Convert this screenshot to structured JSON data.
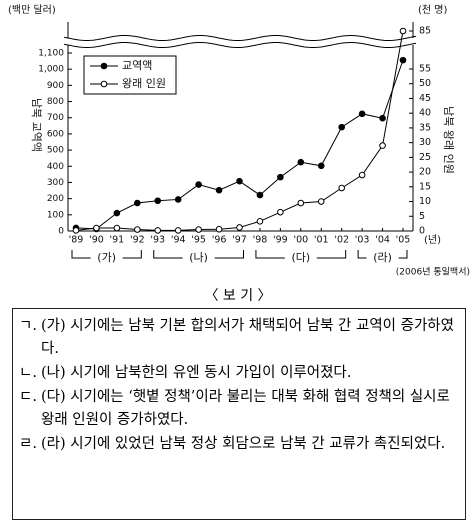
{
  "chart_data": {
    "type": "line",
    "y_unit": "(백만 달러)",
    "y2_unit": "(천 명)",
    "ylabel": "남북 교역액",
    "y2label": "남북 왕래 인원",
    "x_unit": "(년)",
    "categories": [
      "'89",
      "'90",
      "'91",
      "'92",
      "'93",
      "'94",
      "'95",
      "'96",
      "'97",
      "'98",
      "'99",
      "'00",
      "'01",
      "'02",
      "'03",
      "'04",
      "'05"
    ],
    "series": [
      {
        "name": "교역액",
        "color": "#000000",
        "marker": "filled",
        "values": [
          19,
          13,
          111,
          173,
          187,
          195,
          287,
          252,
          308,
          222,
          333,
          425,
          403,
          642,
          724,
          697,
          1056
        ]
      },
      {
        "name": "왕래 인원",
        "color": "#000000",
        "marker": "open",
        "axis": "y2",
        "values": [
          0.2,
          1,
          1,
          0.5,
          0.2,
          0.2,
          0.5,
          0.6,
          1.2,
          3.3,
          6.4,
          9.5,
          10,
          14.6,
          19,
          29,
          88
        ]
      }
    ],
    "ylim": [
      0,
      1100
    ],
    "yticks": [
      0,
      100,
      200,
      300,
      400,
      500,
      600,
      700,
      800,
      900,
      {
        "value": 1000,
        "label": "1,000"
      },
      {
        "value": 1100,
        "label": "1,100"
      }
    ],
    "y2lim": [
      0,
      85
    ],
    "y2ticks": [
      0,
      5,
      10,
      15,
      20,
      25,
      30,
      35,
      40,
      45,
      50,
      55,
      85
    ],
    "periods": [
      {
        "label": "(가)",
        "from": 0,
        "to": 3
      },
      {
        "label": "(나)",
        "from": 4,
        "to": 8
      },
      {
        "label": "(다)",
        "from": 9,
        "to": 13
      },
      {
        "label": "(라)",
        "from": 14,
        "to": 16
      }
    ],
    "source": "(2006년 통일백서)"
  },
  "bogi": {
    "title": "〈 보 기 〉",
    "items": [
      {
        "marker": "ㄱ.",
        "text": "(가) 시기에는 남북 기본 합의서가 채택되어 남북 간 교역이 증가하였다."
      },
      {
        "marker": "ㄴ.",
        "text": "(나) 시기에 남북한의 유엔 동시 가입이 이루어졌다."
      },
      {
        "marker": "ㄷ.",
        "text": "(다) 시기에는 ‘햇볕 정책’이라 불리는 대북 화해 협력 정책의 실시로 왕래 인원이 증가하였다."
      },
      {
        "marker": "ㄹ.",
        "text": "(라) 시기에 있었던 남북 정상 회담으로 남북 간 교류가 촉진되었다."
      }
    ]
  }
}
